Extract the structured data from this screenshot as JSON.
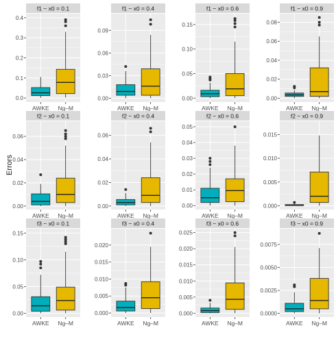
{
  "figure": {
    "ylabel": "Errors",
    "colors": {
      "AWKE": "#00AFBB",
      "Ng-M": "#E7B800",
      "panel_bg": "#EBEBEB",
      "strip_bg": "#D9D9D9",
      "grid": "#ffffff"
    }
  },
  "chart_data": [
    {
      "type": "box",
      "title": "f1 − x0 = 0.1",
      "categories": [
        "AWKE",
        "Ng–M"
      ],
      "yticks": [
        0.0,
        0.1,
        0.2,
        0.3,
        0.4
      ],
      "yticklabels": [
        "0.0",
        "0.1",
        "0.2",
        "0.3",
        "0.4"
      ],
      "ylim": [
        -0.02,
        0.42
      ],
      "series": [
        {
          "name": "AWKE",
          "whislo": 0.001,
          "q1": 0.012,
          "med": 0.026,
          "q3": 0.052,
          "whishi": 0.105,
          "outliers": []
        },
        {
          "name": "Ng–M",
          "whislo": 0.002,
          "q1": 0.022,
          "med": 0.078,
          "q3": 0.143,
          "whishi": 0.33,
          "outliers": [
            0.36,
            0.38,
            0.39
          ]
        }
      ]
    },
    {
      "type": "box",
      "title": "f1 − x0 = 0.4",
      "categories": [
        "AWKE",
        "Ng–M"
      ],
      "yticks": [
        0.0,
        0.03,
        0.06,
        0.09
      ],
      "yticklabels": [
        "0.00",
        "0.03",
        "0.06",
        "0.09"
      ],
      "ylim": [
        -0.005,
        0.112
      ],
      "series": [
        {
          "name": "AWKE",
          "whislo": 0.0,
          "q1": 0.004,
          "med": 0.009,
          "q3": 0.018,
          "whishi": 0.036,
          "outliers": [
            0.042
          ]
        },
        {
          "name": "Ng–M",
          "whislo": 0.0,
          "q1": 0.004,
          "med": 0.016,
          "q3": 0.039,
          "whishi": 0.084,
          "outliers": [
            0.098,
            0.104
          ]
        }
      ]
    },
    {
      "type": "box",
      "title": "f1 − x0 = 0.6",
      "categories": [
        "AWKE",
        "Ng–M"
      ],
      "yticks": [
        0.0,
        0.05,
        0.1,
        0.15
      ],
      "yticklabels": [
        "0.00",
        "0.05",
        "0.10",
        "0.15"
      ],
      "ylim": [
        -0.008,
        0.172
      ],
      "series": [
        {
          "name": "AWKE",
          "whislo": 0.0,
          "q1": 0.003,
          "med": 0.009,
          "q3": 0.016,
          "whishi": 0.031,
          "outliers": [
            0.037,
            0.04,
            0.043
          ]
        },
        {
          "name": "Ng–M",
          "whislo": 0.0,
          "q1": 0.005,
          "med": 0.019,
          "q3": 0.05,
          "whishi": 0.115,
          "outliers": [
            0.145,
            0.152,
            0.158,
            0.162
          ]
        }
      ]
    },
    {
      "type": "box",
      "title": "f1 − x0 = 0.9",
      "categories": [
        "AWKE",
        "Ng–M"
      ],
      "yticks": [
        0.0,
        0.02,
        0.04,
        0.06,
        0.08
      ],
      "yticklabels": [
        "0.00",
        "0.02",
        "0.04",
        "0.06",
        "0.08"
      ],
      "ylim": [
        -0.004,
        0.089
      ],
      "series": [
        {
          "name": "AWKE",
          "whislo": 0.0,
          "q1": 0.002,
          "med": 0.0035,
          "q3": 0.0055,
          "whishi": 0.0085,
          "outliers": [
            0.011,
            0.0125
          ]
        },
        {
          "name": "Ng–M",
          "whislo": 0.0,
          "q1": 0.002,
          "med": 0.007,
          "q3": 0.032,
          "whishi": 0.065,
          "outliers": [
            0.077,
            0.08,
            0.085
          ]
        }
      ]
    },
    {
      "type": "box",
      "title": "f2 − x0 = 0.1",
      "categories": [
        "AWKE",
        "Ng–M"
      ],
      "yticks": [
        0.0,
        0.02,
        0.04,
        0.06
      ],
      "yticklabels": [
        "0.00",
        "0.02",
        "0.04",
        "0.06"
      ],
      "ylim": [
        -0.003,
        0.073
      ],
      "series": [
        {
          "name": "AWKE",
          "whislo": 0.0,
          "q1": 0.001,
          "med": 0.004,
          "q3": 0.0105,
          "whishi": 0.019,
          "outliers": [
            0.027
          ]
        },
        {
          "name": "Ng–M",
          "whislo": 0.0,
          "q1": 0.003,
          "med": 0.01,
          "q3": 0.024,
          "whishi": 0.052,
          "outliers": [
            0.058,
            0.06,
            0.062,
            0.065
          ]
        }
      ]
    },
    {
      "type": "box",
      "title": "f2 − x0 = 0.4",
      "categories": [
        "AWKE",
        "Ng–M"
      ],
      "yticks": [
        0.0,
        0.02,
        0.04,
        0.06
      ],
      "yticklabels": [
        "0.00",
        "0.02",
        "0.04",
        "0.06"
      ],
      "ylim": [
        -0.003,
        0.072
      ],
      "series": [
        {
          "name": "AWKE",
          "whislo": 0.0,
          "q1": 0.001,
          "med": 0.003,
          "q3": 0.0055,
          "whishi": 0.011,
          "outliers": [
            0.014
          ]
        },
        {
          "name": "Ng–M",
          "whislo": 0.0,
          "q1": 0.003,
          "med": 0.009,
          "q3": 0.024,
          "whishi": 0.054,
          "outliers": [
            0.063,
            0.066
          ]
        }
      ]
    },
    {
      "type": "box",
      "title": "f2 − x0 = 0.6",
      "categories": [
        "AWKE",
        "Ng–M"
      ],
      "yticks": [
        0.0,
        0.01,
        0.02,
        0.03,
        0.04,
        0.05
      ],
      "yticklabels": [
        "0.00",
        "0.01",
        "0.02",
        "0.03",
        "0.04",
        "0.05"
      ],
      "ylim": [
        -0.0025,
        0.0535
      ],
      "series": [
        {
          "name": "AWKE",
          "whislo": 0.0,
          "q1": 0.002,
          "med": 0.005,
          "q3": 0.011,
          "whishi": 0.024,
          "outliers": [
            0.026,
            0.028,
            0.03
          ]
        },
        {
          "name": "Ng–M",
          "whislo": 0.0,
          "q1": 0.0025,
          "med": 0.0095,
          "q3": 0.017,
          "whishi": 0.038,
          "outliers": [
            0.05
          ]
        }
      ]
    },
    {
      "type": "box",
      "title": "f2 − x0 = 0.9",
      "categories": [
        "AWKE",
        "Ng–M"
      ],
      "yticks": [
        0.0,
        0.005,
        0.01,
        0.015
      ],
      "yticklabels": [
        "0.000",
        "0.005",
        "0.010",
        "0.015"
      ],
      "ylim": [
        -0.0008,
        0.0178
      ],
      "series": [
        {
          "name": "AWKE",
          "whislo": 0.0,
          "q1": 5e-05,
          "med": 0.0001,
          "q3": 0.00025,
          "whishi": 0.0004,
          "outliers": [
            0.0007
          ]
        },
        {
          "name": "Ng–M",
          "whislo": 0.0,
          "q1": 0.0007,
          "med": 0.002,
          "q3": 0.0071,
          "whishi": 0.0148,
          "outliers": []
        }
      ]
    },
    {
      "type": "box",
      "title": "f3 − x0 = 0.1",
      "categories": [
        "AWKE",
        "Ng–M"
      ],
      "yticks": [
        0.0,
        0.05,
        0.1,
        0.15
      ],
      "yticklabels": [
        "0.00",
        "0.05",
        "0.10",
        "0.15"
      ],
      "ylim": [
        -0.007,
        0.158
      ],
      "series": [
        {
          "name": "AWKE",
          "whislo": 0.0,
          "q1": 0.004,
          "med": 0.014,
          "q3": 0.031,
          "whishi": 0.072,
          "outliers": [
            0.085,
            0.092,
            0.097
          ]
        },
        {
          "name": "Ng–M",
          "whislo": 0.0,
          "q1": 0.006,
          "med": 0.024,
          "q3": 0.049,
          "whishi": 0.115,
          "outliers": [
            0.13,
            0.134,
            0.138,
            0.142
          ]
        }
      ]
    },
    {
      "type": "box",
      "title": "f3 − x0 = 0.4",
      "categories": [
        "AWKE",
        "Ng–M"
      ],
      "yticks": [
        0.0,
        0.005,
        0.01,
        0.015,
        0.02
      ],
      "yticklabels": [
        "0.000",
        "0.005",
        "0.010",
        "0.015",
        "0.020"
      ],
      "ylim": [
        -0.0012,
        0.0248
      ],
      "series": [
        {
          "name": "AWKE",
          "whislo": 0.0,
          "q1": 0.0006,
          "med": 0.0016,
          "q3": 0.0035,
          "whishi": 0.0075,
          "outliers": [
            0.0082,
            0.0087
          ]
        },
        {
          "name": "Ng–M",
          "whislo": 0.0,
          "q1": 0.0013,
          "med": 0.0045,
          "q3": 0.0092,
          "whishi": 0.0195,
          "outliers": [
            0.0235
          ]
        }
      ]
    },
    {
      "type": "box",
      "title": "f3 − x0 = 0.6",
      "categories": [
        "AWKE",
        "Ng–M"
      ],
      "yticks": [
        0.0,
        0.005,
        0.01,
        0.015,
        0.02,
        0.025
      ],
      "yticklabels": [
        "0.000",
        "0.005",
        "0.010",
        "0.015",
        "0.020",
        "0.025"
      ],
      "ylim": [
        -0.0012,
        0.0262
      ],
      "series": [
        {
          "name": "AWKE",
          "whislo": 0.0,
          "q1": 0.0002,
          "med": 0.0008,
          "q3": 0.0016,
          "whishi": 0.0032,
          "outliers": [
            0.004
          ]
        },
        {
          "name": "Ng–M",
          "whislo": 0.0,
          "q1": 0.0012,
          "med": 0.0043,
          "q3": 0.0094,
          "whishi": 0.0205,
          "outliers": [
            0.024,
            0.025
          ]
        }
      ]
    },
    {
      "type": "box",
      "title": "f3 − x0 = 0.9",
      "categories": [
        "AWKE",
        "Ng–M"
      ],
      "yticks": [
        0.0,
        0.0025,
        0.005,
        0.0075
      ],
      "yticklabels": [
        "0.0000",
        "0.0025",
        "0.0050",
        "0.0075"
      ],
      "ylim": [
        -0.0004,
        0.0092
      ],
      "series": [
        {
          "name": "AWKE",
          "whislo": 0.0,
          "q1": 0.0002,
          "med": 0.0005,
          "q3": 0.0011,
          "whishi": 0.0023,
          "outliers": [
            0.0029,
            0.0031
          ]
        },
        {
          "name": "Ng–M",
          "whislo": 0.0,
          "q1": 0.0005,
          "med": 0.0014,
          "q3": 0.0038,
          "whishi": 0.0071,
          "outliers": [
            0.0087
          ]
        }
      ]
    }
  ]
}
